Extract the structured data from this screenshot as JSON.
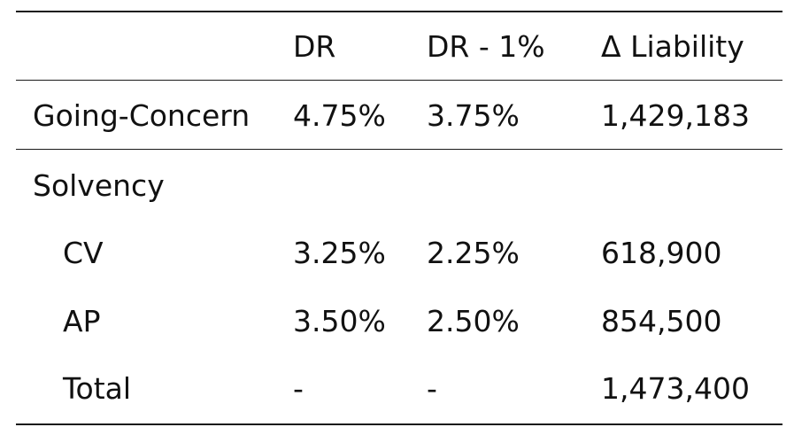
{
  "table": {
    "columns": [
      "",
      "DR",
      "DR - 1%",
      "Δ Liability"
    ],
    "rows": [
      {
        "label": "Going-Concern",
        "dr": "4.75%",
        "dr_minus": "3.75%",
        "delta": "1,429,183"
      },
      {
        "label": "Solvency",
        "dr": "",
        "dr_minus": "",
        "delta": ""
      },
      {
        "label": "CV",
        "dr": "3.25%",
        "dr_minus": "2.25%",
        "delta": "618,900"
      },
      {
        "label": "AP",
        "dr": "3.50%",
        "dr_minus": "2.50%",
        "delta": "854,500"
      },
      {
        "label": "Total",
        "dr": "-",
        "dr_minus": "-",
        "delta": "1,473,400"
      }
    ]
  }
}
